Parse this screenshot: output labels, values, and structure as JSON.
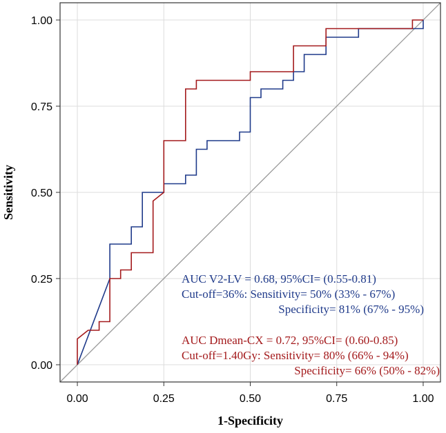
{
  "chart_data": {
    "type": "line",
    "xlabel": "1-Specificity",
    "ylabel": "Sensitivity",
    "xlim": [
      -0.05,
      1.05
    ],
    "ylim": [
      -0.05,
      1.05
    ],
    "xticks": [
      0,
      0.25,
      0.5,
      0.75,
      1
    ],
    "xtick_labels": [
      "0.00",
      "0.25",
      "0.50",
      "0.75",
      "1.00"
    ],
    "yticks": [
      0,
      0.25,
      0.5,
      0.75,
      1
    ],
    "ytick_labels": [
      "0.00",
      "0.25",
      "0.50",
      "0.75",
      "1.00"
    ],
    "grid": true,
    "reference_line": {
      "x": [
        0,
        1
      ],
      "y": [
        0,
        1
      ],
      "color": "#999999"
    },
    "series": [
      {
        "name": "AUC V2-LV",
        "color": "#1f3a8a",
        "x": [
          0,
          0.094,
          0.094,
          0.156,
          0.156,
          0.188,
          0.188,
          0.25,
          0.25,
          0.313,
          0.313,
          0.344,
          0.344,
          0.375,
          0.375,
          0.469,
          0.469,
          0.5,
          0.5,
          0.531,
          0.531,
          0.594,
          0.594,
          0.625,
          0.625,
          0.656,
          0.656,
          0.719,
          0.719,
          0.813,
          0.813,
          1.0,
          1.0
        ],
        "y": [
          0,
          0.25,
          0.35,
          0.35,
          0.4,
          0.4,
          0.5,
          0.5,
          0.525,
          0.525,
          0.55,
          0.55,
          0.625,
          0.625,
          0.65,
          0.65,
          0.675,
          0.675,
          0.775,
          0.775,
          0.8,
          0.8,
          0.825,
          0.825,
          0.85,
          0.85,
          0.9,
          0.9,
          0.95,
          0.95,
          0.975,
          0.975,
          1.0
        ]
      },
      {
        "name": "AUC Dmean-CX",
        "color": "#a3191b",
        "x": [
          0,
          0,
          0.031,
          0.031,
          0.063,
          0.063,
          0.094,
          0.094,
          0.125,
          0.125,
          0.156,
          0.156,
          0.219,
          0.219,
          0.25,
          0.25,
          0.313,
          0.313,
          0.344,
          0.344,
          0.5,
          0.5,
          0.625,
          0.625,
          0.719,
          0.719,
          0.969,
          0.969,
          1.0
        ],
        "y": [
          0,
          0.075,
          0.1,
          0.1,
          0.1,
          0.125,
          0.125,
          0.25,
          0.25,
          0.275,
          0.275,
          0.325,
          0.325,
          0.475,
          0.5,
          0.65,
          0.65,
          0.8,
          0.8,
          0.825,
          0.825,
          0.85,
          0.85,
          0.925,
          0.925,
          0.975,
          0.975,
          1.0,
          1.0
        ]
      }
    ],
    "annotations": [
      {
        "text": "AUC V2-LV = 0.68, 95%CI= (0.55-0.81)",
        "color": "#1f3a8a"
      },
      {
        "text": "Cut-off=36%: Sensitivity= 50% (33% - 67%)",
        "color": "#1f3a8a"
      },
      {
        "text": "Specificity= 81% (67% - 95%)",
        "color": "#1f3a8a"
      },
      {
        "text": "AUC Dmean-CX = 0.72, 95%CI= (0.60-0.85)",
        "color": "#a3191b"
      },
      {
        "text": "Cut-off=1.40Gy: Sensitivity= 80% (66% - 94%)",
        "color": "#a3191b"
      },
      {
        "text": "Specificity= 66% (50% - 82%)",
        "color": "#a3191b"
      }
    ]
  }
}
